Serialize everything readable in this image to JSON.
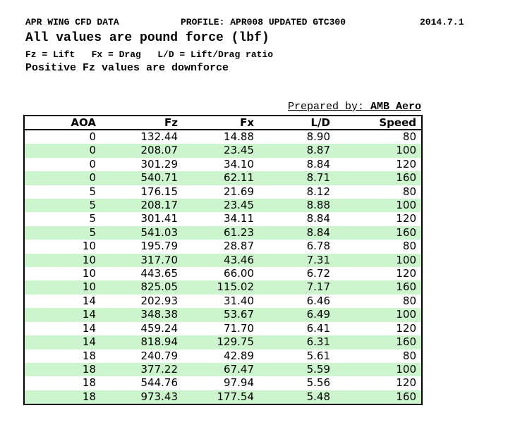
{
  "header": {
    "title_left": "APR WING CFD DATA",
    "title_center": "PROFILE: APR008 UPDATED GTC300",
    "title_right": "2014.7.1",
    "subtitle": "All values are pound force (lbf)",
    "legend": "Fz = Lift   Fx = Drag   L/D = Lift/Drag ratio",
    "note": "Positive Fz values are downforce",
    "prepared_by_label": "Prepared by: ",
    "prepared_by_value": "AMB Aero"
  },
  "table": {
    "columns": [
      "AOA",
      "Fz",
      "Fx",
      "L/D",
      "Speed"
    ],
    "column_keys": [
      "aoa",
      "fz",
      "fx",
      "ld",
      "speed"
    ],
    "rows": [
      [
        "0",
        "132.44",
        "14.88",
        "8.90",
        "80"
      ],
      [
        "0",
        "208.07",
        "23.45",
        "8.87",
        "100"
      ],
      [
        "0",
        "301.29",
        "34.10",
        "8.84",
        "120"
      ],
      [
        "0",
        "540.71",
        "62.11",
        "8.71",
        "160"
      ],
      [
        "5",
        "176.15",
        "21.69",
        "8.12",
        "80"
      ],
      [
        "5",
        "208.17",
        "23.45",
        "8.88",
        "100"
      ],
      [
        "5",
        "301.41",
        "34.11",
        "8.84",
        "120"
      ],
      [
        "5",
        "541.03",
        "61.23",
        "8.84",
        "160"
      ],
      [
        "10",
        "195.79",
        "28.87",
        "6.78",
        "80"
      ],
      [
        "10",
        "317.70",
        "43.46",
        "7.31",
        "100"
      ],
      [
        "10",
        "443.65",
        "66.00",
        "6.72",
        "120"
      ],
      [
        "10",
        "825.05",
        "115.02",
        "7.17",
        "160"
      ],
      [
        "14",
        "202.93",
        "31.40",
        "6.46",
        "80"
      ],
      [
        "14",
        "348.38",
        "53.67",
        "6.49",
        "100"
      ],
      [
        "14",
        "459.24",
        "71.70",
        "6.41",
        "120"
      ],
      [
        "14",
        "818.94",
        "129.75",
        "6.31",
        "160"
      ],
      [
        "18",
        "240.79",
        "42.89",
        "5.61",
        "80"
      ],
      [
        "18",
        "377.22",
        "67.47",
        "5.59",
        "100"
      ],
      [
        "18",
        "544.76",
        "97.94",
        "5.56",
        "120"
      ],
      [
        "18",
        "973.43",
        "177.54",
        "5.48",
        "160"
      ]
    ]
  },
  "colors": {
    "row_alt_green": "#cdf5cd",
    "border": "#000000",
    "text": "#000000"
  }
}
